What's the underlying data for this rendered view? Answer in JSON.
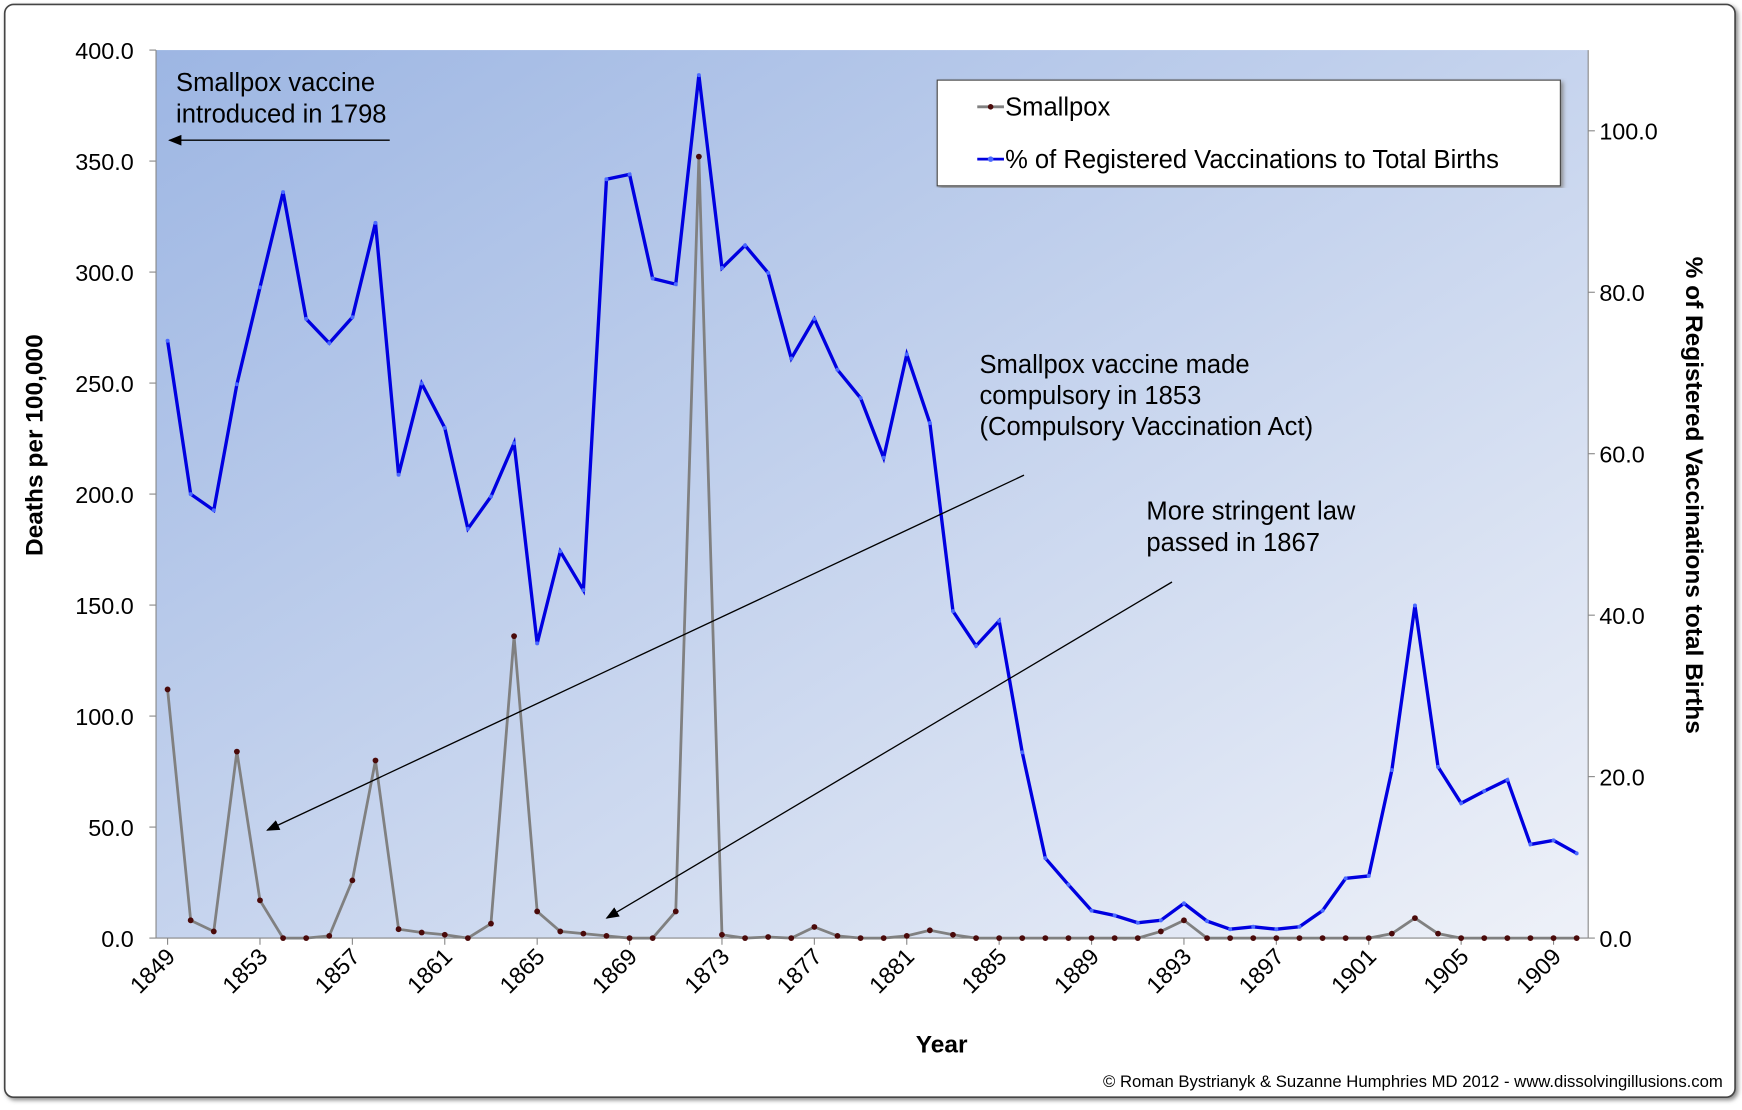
{
  "chart_data": {
    "type": "line",
    "x_label": "Year",
    "y_label": "Deaths per 100,000",
    "y2_label": "% of Registered Vaccinations total Births",
    "x": [
      1849,
      1850,
      1851,
      1852,
      1853,
      1854,
      1855,
      1856,
      1857,
      1858,
      1859,
      1860,
      1861,
      1862,
      1863,
      1864,
      1865,
      1866,
      1867,
      1868,
      1869,
      1870,
      1871,
      1872,
      1873,
      1874,
      1875,
      1876,
      1877,
      1878,
      1879,
      1880,
      1881,
      1882,
      1883,
      1884,
      1885,
      1886,
      1887,
      1888,
      1889,
      1890,
      1891,
      1892,
      1893,
      1894,
      1895,
      1896,
      1897,
      1898,
      1899,
      1900,
      1901,
      1902,
      1903,
      1904,
      1905,
      1906,
      1907,
      1908,
      1909,
      1910
    ],
    "xlim": [
      1848.5,
      1910.5
    ],
    "xticks": [
      1849,
      1853,
      1857,
      1861,
      1865,
      1869,
      1873,
      1877,
      1881,
      1885,
      1889,
      1893,
      1897,
      1901,
      1905,
      1909
    ],
    "ylim": [
      0,
      400
    ],
    "yticks": [
      {
        "value": 0,
        "label": "0.0"
      },
      {
        "value": 50,
        "label": "50.0"
      },
      {
        "value": 100,
        "label": "100.0"
      },
      {
        "value": 150,
        "label": "150.0"
      },
      {
        "value": 200,
        "label": "200.0"
      },
      {
        "value": 250,
        "label": "250.0"
      },
      {
        "value": 300,
        "label": "300.0"
      },
      {
        "value": 350,
        "label": "350.0"
      },
      {
        "value": 400,
        "label": "400.0"
      }
    ],
    "y2lim": [
      0,
      110
    ],
    "y2ticks": [
      {
        "value": 0,
        "label": "0.0"
      },
      {
        "value": 20,
        "label": "20.0"
      },
      {
        "value": 40,
        "label": "40.0"
      },
      {
        "value": 60,
        "label": "60.0"
      },
      {
        "value": 80,
        "label": "80.0"
      },
      {
        "value": 100,
        "label": "100.0"
      }
    ],
    "legend": "upper right",
    "series": [
      {
        "name": "Smallpox",
        "color": "#808080",
        "marker_color": "#4a0a0a",
        "axis": "y",
        "values": [
          112,
          8,
          3,
          84,
          17,
          0,
          0,
          1,
          26,
          80,
          4,
          2.5,
          1.5,
          0,
          6.5,
          136,
          12,
          3,
          2,
          1,
          0,
          0,
          12,
          352,
          1.5,
          0,
          0.5,
          0,
          5,
          1,
          0,
          0,
          1,
          3.5,
          1.5,
          0,
          0,
          0,
          0,
          0,
          0,
          0,
          0,
          3,
          8,
          0,
          0,
          0,
          0,
          0,
          0,
          0,
          0,
          2,
          9,
          2,
          0,
          0,
          0,
          0,
          0,
          0
        ]
      },
      {
        "name": "% of Registered Vaccinations to Total Births",
        "color": "#0000e0",
        "marker_color": "#4a6aff",
        "axis": "y2",
        "values": [
          74,
          55,
          53,
          68.6,
          80.6,
          92.4,
          76.7,
          73.7,
          76.9,
          88.6,
          57.4,
          68.7,
          63.2,
          50.7,
          54.7,
          61.3,
          36.5,
          47.9,
          43.1,
          94,
          94.6,
          81.7,
          81,
          106.9,
          83,
          85.8,
          82.4,
          71.8,
          76.7,
          70.4,
          66.9,
          59.5,
          72.3,
          63.8,
          40.5,
          36.2,
          39.3,
          23,
          9.9,
          6.6,
          3.4,
          2.8,
          1.9,
          2.2,
          4.3,
          2.1,
          1.1,
          1.4,
          1.1,
          1.4,
          3.4,
          7.4,
          7.7,
          20.8,
          41.2,
          21.2,
          16.7,
          18.2,
          19.6,
          11.6,
          12.1,
          10.5
        ]
      }
    ],
    "annotations": [
      {
        "lines": [
          "Smallpox vaccine",
          "introduced in 1798"
        ]
      },
      {
        "lines": [
          "Smallpox vaccine made",
          "compulsory in 1853",
          "(Compulsory Vaccination Act)"
        ]
      },
      {
        "lines": [
          "More stringent law",
          "passed in 1867"
        ]
      }
    ],
    "footer": "© Roman Bystrianyk & Suzanne Humphries MD 2012 - www.dissolvingillusions.com"
  }
}
